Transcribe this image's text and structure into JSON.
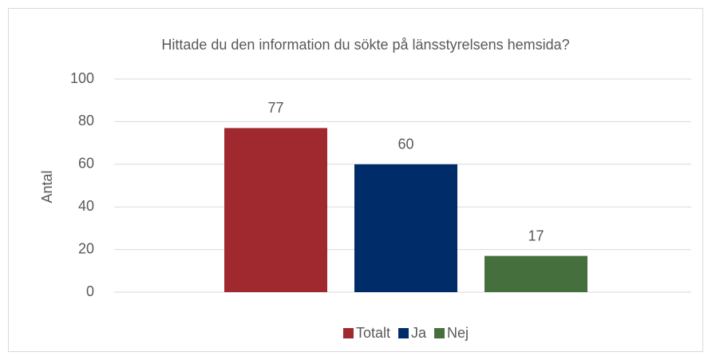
{
  "chart_data": {
    "type": "bar",
    "title": "Hittade du den information du sökte på länsstyrelsens hemsida?",
    "ylabel": "Antal",
    "categories": [
      null
    ],
    "series": [
      {
        "name": "Totalt",
        "color": "#a0282f",
        "values": [
          77
        ]
      },
      {
        "name": "Ja",
        "color": "#002d6a",
        "values": [
          60
        ]
      },
      {
        "name": "Nej",
        "color": "#456f3d",
        "values": [
          17
        ]
      }
    ],
    "ylim": [
      0,
      100
    ],
    "yticks": [
      0,
      20,
      40,
      60,
      80,
      100
    ],
    "grid": true,
    "legend": "bottom"
  }
}
